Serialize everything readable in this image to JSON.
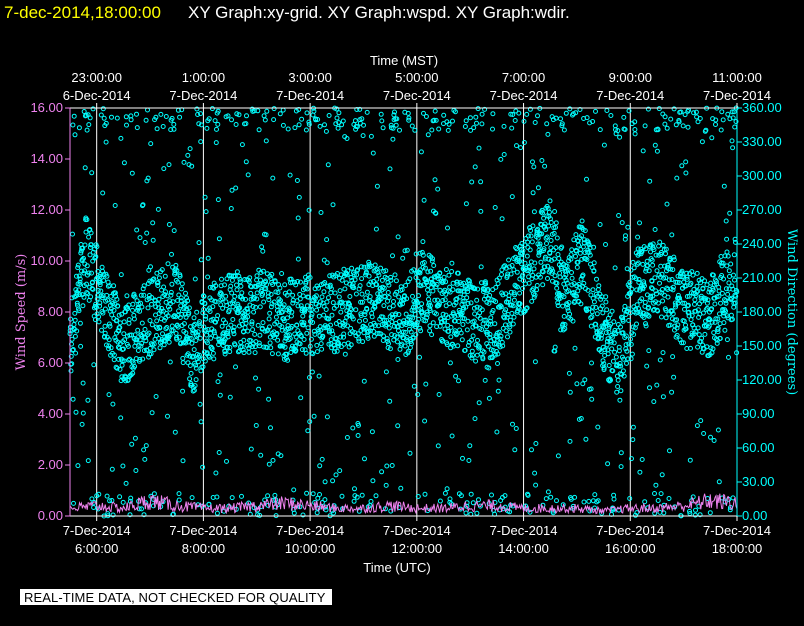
{
  "header": {
    "datetime": "7-dec-2014,18:00:00",
    "graphs": "XY Graph:xy-grid.  XY Graph:wspd.  XY Graph:wdir.",
    "datetime_color": "#ffff00",
    "graphs_color": "#ffffff"
  },
  "banner": {
    "text": "REAL-TIME DATA, NOT CHECKED FOR QUALITY"
  },
  "chart_data": {
    "type": "scatter",
    "x_start_utc": "2014-12-07 05:30",
    "x_end_utc": "2014-12-07 18:00",
    "top_axis": {
      "title": "Time (MST)",
      "ticks": [
        {
          "time": "23:00:00",
          "date": "6-Dec-2014",
          "hours": 0.5
        },
        {
          "time": "1:00:00",
          "date": "7-Dec-2014",
          "hours": 2.5
        },
        {
          "time": "3:00:00",
          "date": "7-Dec-2014",
          "hours": 4.5
        },
        {
          "time": "5:00:00",
          "date": "7-Dec-2014",
          "hours": 6.5
        },
        {
          "time": "7:00:00",
          "date": "7-Dec-2014",
          "hours": 8.5
        },
        {
          "time": "9:00:00",
          "date": "7-Dec-2014",
          "hours": 10.5
        },
        {
          "time": "11:00:00",
          "date": "7-Dec-2014",
          "hours": 12.5
        }
      ]
    },
    "bottom_axis": {
      "title": "Time (UTC)",
      "ticks": [
        {
          "date": "7-Dec-2014",
          "time": "6:00:00",
          "hours": 0.5
        },
        {
          "date": "7-Dec-2014",
          "time": "8:00:00",
          "hours": 2.5
        },
        {
          "date": "7-Dec-2014",
          "time": "10:00:00",
          "hours": 4.5
        },
        {
          "date": "7-Dec-2014",
          "time": "12:00:00",
          "hours": 6.5
        },
        {
          "date": "7-Dec-2014",
          "time": "14:00:00",
          "hours": 8.5
        },
        {
          "date": "7-Dec-2014",
          "time": "16:00:00",
          "hours": 10.5
        },
        {
          "date": "7-Dec-2014",
          "time": "18:00:00",
          "hours": 12.5
        }
      ]
    },
    "left_axis": {
      "title": "Wind Speed (m/s)",
      "ylim": [
        0,
        16
      ],
      "ticks": [
        "0.00",
        "2.00",
        "4.00",
        "6.00",
        "8.00",
        "10.00",
        "12.00",
        "14.00",
        "16.00"
      ],
      "color": "#ee82ee"
    },
    "right_axis": {
      "title": "Wind Direction (degrees)",
      "ylim": [
        0,
        360
      ],
      "ticks": [
        "0.00",
        "30.00",
        "60.00",
        "90.00",
        "120.00",
        "150.00",
        "180.00",
        "210.00",
        "240.00",
        "270.00",
        "300.00",
        "330.00",
        "360.00"
      ],
      "color": "#00ffff"
    },
    "grid": true,
    "grid_color": "#ffffff",
    "series": [
      {
        "color": "#ee82ee",
        "axis": "left",
        "description_hours_value": [
          [
            0.0,
            0.3
          ],
          [
            0.5,
            0.4
          ],
          [
            1.0,
            0.3
          ],
          [
            1.5,
            0.6
          ],
          [
            2.0,
            0.4
          ],
          [
            2.5,
            0.3
          ],
          [
            3.0,
            0.3
          ],
          [
            3.5,
            0.4
          ],
          [
            4.0,
            0.5
          ],
          [
            4.5,
            0.4
          ],
          [
            5.0,
            0.3
          ],
          [
            5.5,
            0.3
          ],
          [
            6.0,
            0.4
          ],
          [
            6.5,
            0.3
          ],
          [
            7.0,
            0.3
          ],
          [
            7.5,
            0.4
          ],
          [
            8.0,
            0.4
          ],
          [
            8.5,
            0.3
          ],
          [
            9.0,
            0.3
          ],
          [
            9.5,
            0.3
          ],
          [
            10.0,
            0.2
          ],
          [
            10.5,
            0.3
          ],
          [
            11.0,
            0.3
          ],
          [
            11.5,
            0.4
          ],
          [
            12.0,
            0.6
          ],
          [
            12.5,
            0.5
          ],
          [
            13.0,
            0.4
          ]
        ]
      },
      {
        "color": "#00ffff",
        "axis": "right",
        "description_hours_value": [
          [
            0.0,
            150
          ],
          [
            0.3,
            230
          ],
          [
            0.6,
            190
          ],
          [
            1.0,
            150
          ],
          [
            1.3,
            165
          ],
          [
            1.6,
            180
          ],
          [
            2.0,
            190
          ],
          [
            2.3,
            140
          ],
          [
            2.6,
            170
          ],
          [
            3.0,
            180
          ],
          [
            3.3,
            175
          ],
          [
            3.6,
            185
          ],
          [
            4.0,
            170
          ],
          [
            4.3,
            180
          ],
          [
            4.6,
            175
          ],
          [
            5.0,
            180
          ],
          [
            5.3,
            185
          ],
          [
            5.6,
            190
          ],
          [
            6.0,
            180
          ],
          [
            6.3,
            175
          ],
          [
            6.6,
            200
          ],
          [
            7.0,
            185
          ],
          [
            7.3,
            180
          ],
          [
            7.6,
            170
          ],
          [
            8.0,
            175
          ],
          [
            8.3,
            200
          ],
          [
            8.6,
            220
          ],
          [
            9.0,
            245
          ],
          [
            9.3,
            190
          ],
          [
            9.6,
            230
          ],
          [
            10.0,
            160
          ],
          [
            10.3,
            140
          ],
          [
            10.6,
            200
          ],
          [
            11.0,
            210
          ],
          [
            11.3,
            195
          ],
          [
            11.6,
            180
          ],
          [
            12.0,
            175
          ],
          [
            12.3,
            200
          ],
          [
            12.6,
            220
          ],
          [
            13.0,
            160
          ]
        ]
      }
    ]
  }
}
